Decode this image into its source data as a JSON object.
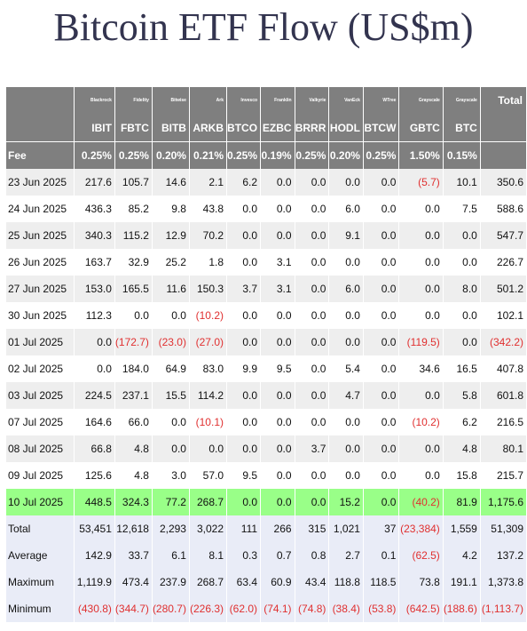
{
  "title": "Bitcoin ETF Flow (US$m)",
  "colors": {
    "header_bg": "#7f7f7f",
    "highlight_row": "#99ff88",
    "negative": "#e03030",
    "stats_bg": "#e9ecf7"
  },
  "chart_data": {
    "type": "table",
    "issuers": [
      "Blackrock",
      "Fidelity",
      "Bitwise",
      "Ark",
      "Invesco",
      "Franklin",
      "Valkyrie",
      "VanEck",
      "WTree",
      "Grayscale",
      "Grayscale"
    ],
    "tickers": [
      "IBIT",
      "FBTC",
      "BITB",
      "ARKB",
      "BTCO",
      "EZBC",
      "BRRR",
      "HODL",
      "BTCW",
      "GBTC",
      "BTC"
    ],
    "total_label": "Total",
    "fee_label": "Fee",
    "fees": [
      "0.25%",
      "0.25%",
      "0.20%",
      "0.21%",
      "0.25%",
      "0.19%",
      "0.25%",
      "0.20%",
      "0.25%",
      "1.50%",
      "0.15%"
    ],
    "rows": [
      {
        "date": "23 Jun 2025",
        "values": [
          "217.6",
          "105.7",
          "14.6",
          "2.1",
          "6.2",
          "0.0",
          "0.0",
          "0.0",
          "0.0",
          "(5.7)",
          "10.1"
        ],
        "total": "350.6"
      },
      {
        "date": "24 Jun 2025",
        "values": [
          "436.3",
          "85.2",
          "9.8",
          "43.8",
          "0.0",
          "0.0",
          "0.0",
          "6.0",
          "0.0",
          "0.0",
          "7.5"
        ],
        "total": "588.6"
      },
      {
        "date": "25 Jun 2025",
        "values": [
          "340.3",
          "115.2",
          "12.9",
          "70.2",
          "0.0",
          "0.0",
          "0.0",
          "9.1",
          "0.0",
          "0.0",
          "0.0"
        ],
        "total": "547.7"
      },
      {
        "date": "26 Jun 2025",
        "values": [
          "163.7",
          "32.9",
          "25.2",
          "1.8",
          "0.0",
          "3.1",
          "0.0",
          "0.0",
          "0.0",
          "0.0",
          "0.0"
        ],
        "total": "226.7"
      },
      {
        "date": "27 Jun 2025",
        "values": [
          "153.0",
          "165.5",
          "11.6",
          "150.3",
          "3.7",
          "3.1",
          "0.0",
          "6.0",
          "0.0",
          "0.0",
          "8.0"
        ],
        "total": "501.2"
      },
      {
        "date": "30 Jun 2025",
        "values": [
          "112.3",
          "0.0",
          "0.0",
          "(10.2)",
          "0.0",
          "0.0",
          "0.0",
          "0.0",
          "0.0",
          "0.0",
          "0.0"
        ],
        "total": "102.1"
      },
      {
        "date": "01 Jul 2025",
        "values": [
          "0.0",
          "(172.7)",
          "(23.0)",
          "(27.0)",
          "0.0",
          "0.0",
          "0.0",
          "0.0",
          "0.0",
          "(119.5)",
          "0.0"
        ],
        "total": "(342.2)"
      },
      {
        "date": "02 Jul 2025",
        "values": [
          "0.0",
          "184.0",
          "64.9",
          "83.0",
          "9.9",
          "9.5",
          "0.0",
          "5.4",
          "0.0",
          "34.6",
          "16.5"
        ],
        "total": "407.8"
      },
      {
        "date": "03 Jul 2025",
        "values": [
          "224.5",
          "237.1",
          "15.5",
          "114.2",
          "0.0",
          "0.0",
          "0.0",
          "4.7",
          "0.0",
          "0.0",
          "5.8"
        ],
        "total": "601.8"
      },
      {
        "date": "07 Jul 2025",
        "values": [
          "164.6",
          "66.0",
          "0.0",
          "(10.1)",
          "0.0",
          "0.0",
          "0.0",
          "0.0",
          "0.0",
          "(10.2)",
          "6.2"
        ],
        "total": "216.5"
      },
      {
        "date": "08 Jul 2025",
        "values": [
          "66.8",
          "4.8",
          "0.0",
          "0.0",
          "0.0",
          "0.0",
          "3.7",
          "0.0",
          "0.0",
          "0.0",
          "4.8"
        ],
        "total": "80.1"
      },
      {
        "date": "09 Jul 2025",
        "values": [
          "125.6",
          "4.8",
          "3.0",
          "57.0",
          "9.5",
          "0.0",
          "0.0",
          "0.0",
          "0.0",
          "0.0",
          "15.8"
        ],
        "total": "215.7"
      },
      {
        "date": "10 Jul 2025",
        "values": [
          "448.5",
          "324.3",
          "77.2",
          "268.7",
          "0.0",
          "0.0",
          "0.0",
          "15.2",
          "0.0",
          "(40.2)",
          "81.9"
        ],
        "total": "1,175.6",
        "highlight": true
      }
    ],
    "stats": [
      {
        "label": "Total",
        "values": [
          "53,451",
          "12,618",
          "2,293",
          "3,022",
          "111",
          "266",
          "315",
          "1,021",
          "37",
          "(23,384)",
          "1,559"
        ],
        "total": "51,309"
      },
      {
        "label": "Average",
        "values": [
          "142.9",
          "33.7",
          "6.1",
          "8.1",
          "0.3",
          "0.7",
          "0.8",
          "2.7",
          "0.1",
          "(62.5)",
          "4.2"
        ],
        "total": "137.2"
      },
      {
        "label": "Maximum",
        "values": [
          "1,119.9",
          "473.4",
          "237.9",
          "268.7",
          "63.4",
          "60.9",
          "43.4",
          "118.8",
          "118.5",
          "73.8",
          "191.1"
        ],
        "total": "1,373.8"
      },
      {
        "label": "Minimum",
        "values": [
          "(430.8)",
          "(344.7)",
          "(280.7)",
          "(226.3)",
          "(62.0)",
          "(74.1)",
          "(74.8)",
          "(38.4)",
          "(53.8)",
          "(642.5)",
          "(188.6)"
        ],
        "total": "(1,113.7)"
      }
    ]
  }
}
